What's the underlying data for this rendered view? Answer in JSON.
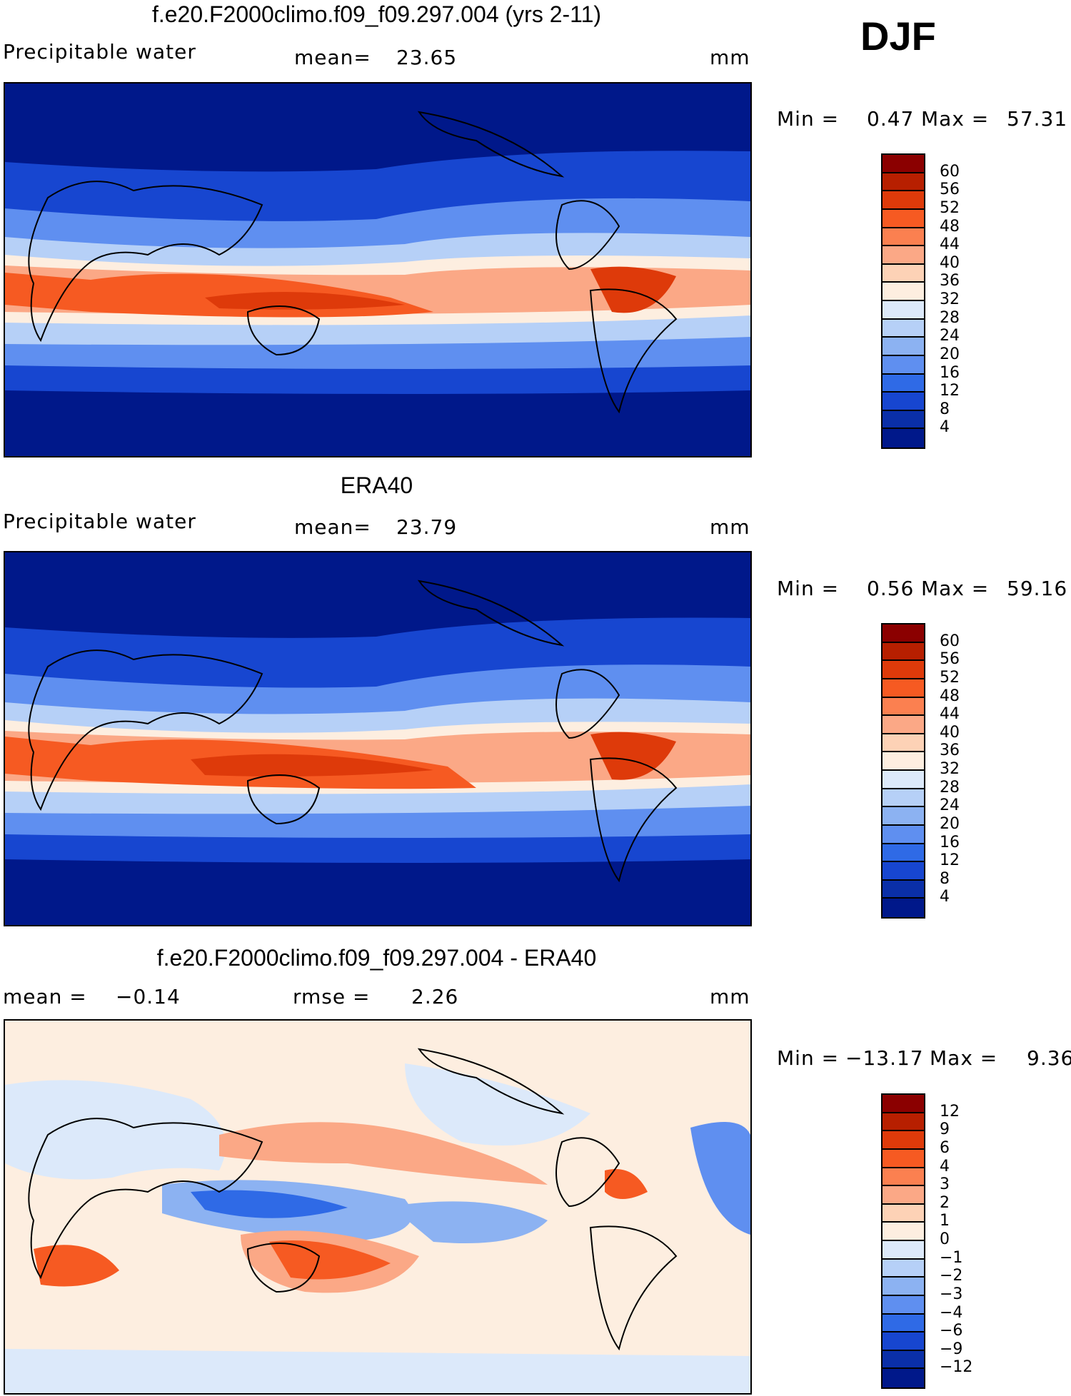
{
  "season": "DJF",
  "panels": [
    {
      "title": "f.e20.F2000climo.f09_f09.297.004 (yrs 2-11)",
      "left_label": "Precipitable water",
      "mid_label": "mean=",
      "mid_value": "23.65",
      "right_label": "mm",
      "min_label": "Min =",
      "min_value": "0.47",
      "max_label": "Max =",
      "max_value": "57.31",
      "variant": "model"
    },
    {
      "title": "ERA40",
      "left_label": "Precipitable water",
      "mid_label": "mean=",
      "mid_value": "23.79",
      "right_label": "mm",
      "min_label": "Min =",
      "min_value": "0.56",
      "max_label": "Max =",
      "max_value": "59.16",
      "variant": "obs"
    },
    {
      "title": "f.e20.F2000climo.f09_f09.297.004 - ERA40",
      "left_label": "mean =",
      "left_value": "−0.14",
      "mid_label": "rmse =",
      "mid_value": "2.26",
      "right_label": "mm",
      "min_label": "Min =",
      "min_value": "−13.17",
      "max_label": "Max =",
      "max_value": "9.36",
      "variant": "diff"
    }
  ],
  "colorbars": {
    "absolute": {
      "ticks": [
        "60",
        "56",
        "52",
        "48",
        "44",
        "40",
        "36",
        "32",
        "28",
        "24",
        "20",
        "16",
        "12",
        "8",
        "4"
      ],
      "colors": [
        "#8b0000",
        "#b71f00",
        "#de3a0a",
        "#f65a22",
        "#fb8050",
        "#fba886",
        "#fdd2b6",
        "#fdeee0",
        "#dce9fa",
        "#b6d0f7",
        "#8cb2f2",
        "#5f8ff0",
        "#2f6ae6",
        "#1746d0",
        "#0a2fa8",
        "#00188a"
      ]
    },
    "difference": {
      "ticks": [
        "12",
        "9",
        "6",
        "4",
        "3",
        "2",
        "1",
        "0",
        "−1",
        "−2",
        "−3",
        "−4",
        "−6",
        "−9",
        "−12"
      ],
      "colors": [
        "#8b0000",
        "#b71f00",
        "#de3a0a",
        "#f65a22",
        "#fb8050",
        "#fba886",
        "#fdd2b6",
        "#fdeee0",
        "#dce9fa",
        "#b6d0f7",
        "#8cb2f2",
        "#5f8ff0",
        "#2f6ae6",
        "#1746d0",
        "#0a2fa8",
        "#00188a"
      ]
    }
  }
}
